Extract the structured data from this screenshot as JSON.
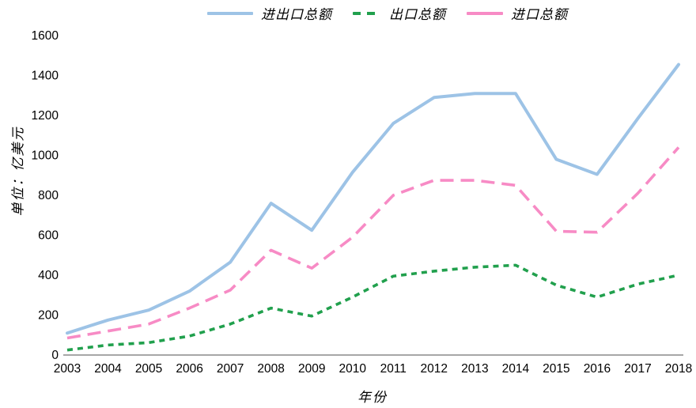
{
  "chart_data": {
    "type": "line",
    "title": "",
    "xlabel": "年份",
    "ylabel": "单位：亿美元",
    "x": [
      2003,
      2004,
      2005,
      2006,
      2007,
      2008,
      2009,
      2010,
      2011,
      2012,
      2013,
      2014,
      2015,
      2016,
      2017,
      2018
    ],
    "ylim": [
      0,
      1600
    ],
    "ytick_step": 200,
    "grid": false,
    "legend_position": "top-center",
    "axis_line_color": "#8a8a8a",
    "series": [
      {
        "name": "进出口总额",
        "color": "#9DC3E6",
        "style": "solid",
        "values": [
          110,
          175,
          225,
          320,
          465,
          760,
          625,
          915,
          1160,
          1290,
          1310,
          1310,
          980,
          905,
          1185,
          1455
        ]
      },
      {
        "name": "出口总额",
        "color": "#21A04D",
        "style": "dash",
        "values": [
          25,
          50,
          62,
          95,
          155,
          235,
          195,
          290,
          395,
          420,
          440,
          450,
          350,
          290,
          355,
          400
        ]
      },
      {
        "name": "进口总额",
        "color": "#F78BC5",
        "style": "long-dash",
        "values": [
          85,
          120,
          155,
          235,
          325,
          525,
          435,
          590,
          800,
          875,
          875,
          850,
          620,
          615,
          810,
          1040
        ]
      }
    ]
  }
}
